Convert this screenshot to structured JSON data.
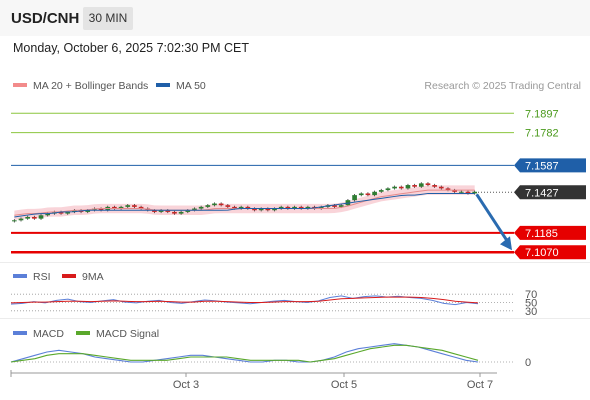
{
  "header": {
    "pair": "USD/CNH",
    "timeframe": "30 MIN"
  },
  "datetime": "Monday, October 6, 2025 7:02:30 PM CET",
  "credit": "Research © 2025 Trading Central",
  "legend": {
    "ma20_bb": "MA 20 + Bollinger Bands",
    "ma50": "MA 50",
    "rsi": "RSI",
    "rsi_ma": "9MA",
    "macd": "MACD",
    "macd_signal": "MACD Signal"
  },
  "colors": {
    "resistance": "#8cc63f",
    "resistance_text": "#4a9a1c",
    "ma50": "#1f5fa8",
    "support": "#e60000",
    "bollinger": "#f7c6cc",
    "candle_up": "#2e7d32",
    "candle_down": "#c62828",
    "last_price": "#333333",
    "arrow": "#2a6bb0",
    "rsi": "#5b7fd8",
    "rsi_ma": "#d81b1b",
    "macd": "#5b7fd8",
    "macd_signal": "#5aa82b"
  },
  "chart_data": [
    {
      "type": "candlestick",
      "series_label": "USD/CNH",
      "ylim": [
        7.1,
        7.2
      ],
      "x": [
        "Oct 3",
        "Oct 5",
        "Oct 7"
      ],
      "levels": {
        "resistance": [
          7.1897,
          7.1782
        ],
        "ma50": 7.1587,
        "last_price": 7.1427,
        "support": [
          7.1185,
          7.107
        ]
      },
      "price_path": [
        7.126,
        7.127,
        7.128,
        7.127,
        7.129,
        7.13,
        7.131,
        7.13,
        7.131,
        7.132,
        7.131,
        7.132,
        7.133,
        7.132,
        7.134,
        7.133,
        7.134,
        7.135,
        7.134,
        7.133,
        7.132,
        7.131,
        7.132,
        7.131,
        7.13,
        7.131,
        7.132,
        7.133,
        7.134,
        7.135,
        7.136,
        7.135,
        7.134,
        7.133,
        7.134,
        7.133,
        7.132,
        7.133,
        7.132,
        7.133,
        7.134,
        7.133,
        7.134,
        7.133,
        7.134,
        7.133,
        7.134,
        7.135,
        7.134,
        7.135,
        7.138,
        7.141,
        7.142,
        7.141,
        7.143,
        7.144,
        7.145,
        7.146,
        7.145,
        7.147,
        7.146,
        7.148,
        7.147,
        7.146,
        7.145,
        7.144,
        7.143,
        7.143,
        7.142,
        7.143
      ],
      "ma20": [
        7.129,
        7.13,
        7.13,
        7.131,
        7.131,
        7.132,
        7.132,
        7.133,
        7.133,
        7.133,
        7.133,
        7.133,
        7.132,
        7.132,
        7.132,
        7.132,
        7.132,
        7.133,
        7.133,
        7.133,
        7.133,
        7.133,
        7.133,
        7.133,
        7.133,
        7.133,
        7.133,
        7.133,
        7.134,
        7.136,
        7.138,
        7.14,
        7.141,
        7.142,
        7.143,
        7.144,
        7.144,
        7.144,
        7.144,
        7.144
      ],
      "ma50_curve": [
        7.128,
        7.129,
        7.13,
        7.13,
        7.131,
        7.131,
        7.132,
        7.132,
        7.132,
        7.132,
        7.132,
        7.132,
        7.132,
        7.132,
        7.132,
        7.132,
        7.132,
        7.132,
        7.132,
        7.133,
        7.133,
        7.133,
        7.133,
        7.133,
        7.133,
        7.133,
        7.134,
        7.135,
        7.136,
        7.137,
        7.138,
        7.139,
        7.14,
        7.141,
        7.141,
        7.142,
        7.142,
        7.142,
        7.142,
        7.142
      ],
      "forecast": {
        "from": 7.1427,
        "to": 7.107
      }
    },
    {
      "type": "line",
      "name": "RSI",
      "ylim": [
        20,
        80
      ],
      "yticks": [
        70,
        50,
        30
      ],
      "series": [
        {
          "name": "RSI",
          "values": [
            46,
            48,
            52,
            49,
            55,
            58,
            52,
            50,
            54,
            57,
            51,
            49,
            53,
            55,
            50,
            48,
            52,
            56,
            54,
            51,
            49,
            47,
            50,
            53,
            55,
            52,
            50,
            54,
            62,
            66,
            60,
            64,
            66,
            63,
            65,
            62,
            60,
            55,
            48,
            45,
            50,
            47
          ]
        },
        {
          "name": "9MA",
          "values": [
            49,
            50,
            51,
            51,
            52,
            53,
            53,
            52,
            53,
            54,
            53,
            52,
            52,
            53,
            52,
            51,
            51,
            53,
            53,
            52,
            51,
            50,
            50,
            51,
            52,
            52,
            52,
            53,
            56,
            59,
            60,
            61,
            62,
            63,
            63,
            63,
            62,
            60,
            57,
            53,
            51,
            49
          ]
        }
      ]
    },
    {
      "type": "line",
      "name": "MACD",
      "ylim": [
        -0.006,
        0.012
      ],
      "yticks": [
        0
      ],
      "series": [
        {
          "name": "MACD",
          "values": [
            0.0,
            0.002,
            0.004,
            0.006,
            0.007,
            0.006,
            0.005,
            0.003,
            0.002,
            0.001,
            0.0,
            0.0,
            0.001,
            0.002,
            0.003,
            0.004,
            0.004,
            0.003,
            0.002,
            0.001,
            0.0,
            0.0,
            0.001,
            0.001,
            0.0,
            0.0,
            0.001,
            0.003,
            0.006,
            0.008,
            0.009,
            0.01,
            0.011,
            0.01,
            0.009,
            0.007,
            0.005,
            0.003,
            0.001,
            0.0
          ]
        },
        {
          "name": "MACD Signal",
          "values": [
            0.0,
            0.001,
            0.002,
            0.004,
            0.005,
            0.005,
            0.005,
            0.004,
            0.003,
            0.002,
            0.001,
            0.001,
            0.001,
            0.001,
            0.002,
            0.003,
            0.003,
            0.003,
            0.003,
            0.002,
            0.001,
            0.001,
            0.001,
            0.001,
            0.001,
            0.0,
            0.001,
            0.002,
            0.004,
            0.006,
            0.008,
            0.009,
            0.01,
            0.01,
            0.009,
            0.008,
            0.007,
            0.005,
            0.003,
            0.001
          ]
        }
      ]
    }
  ]
}
